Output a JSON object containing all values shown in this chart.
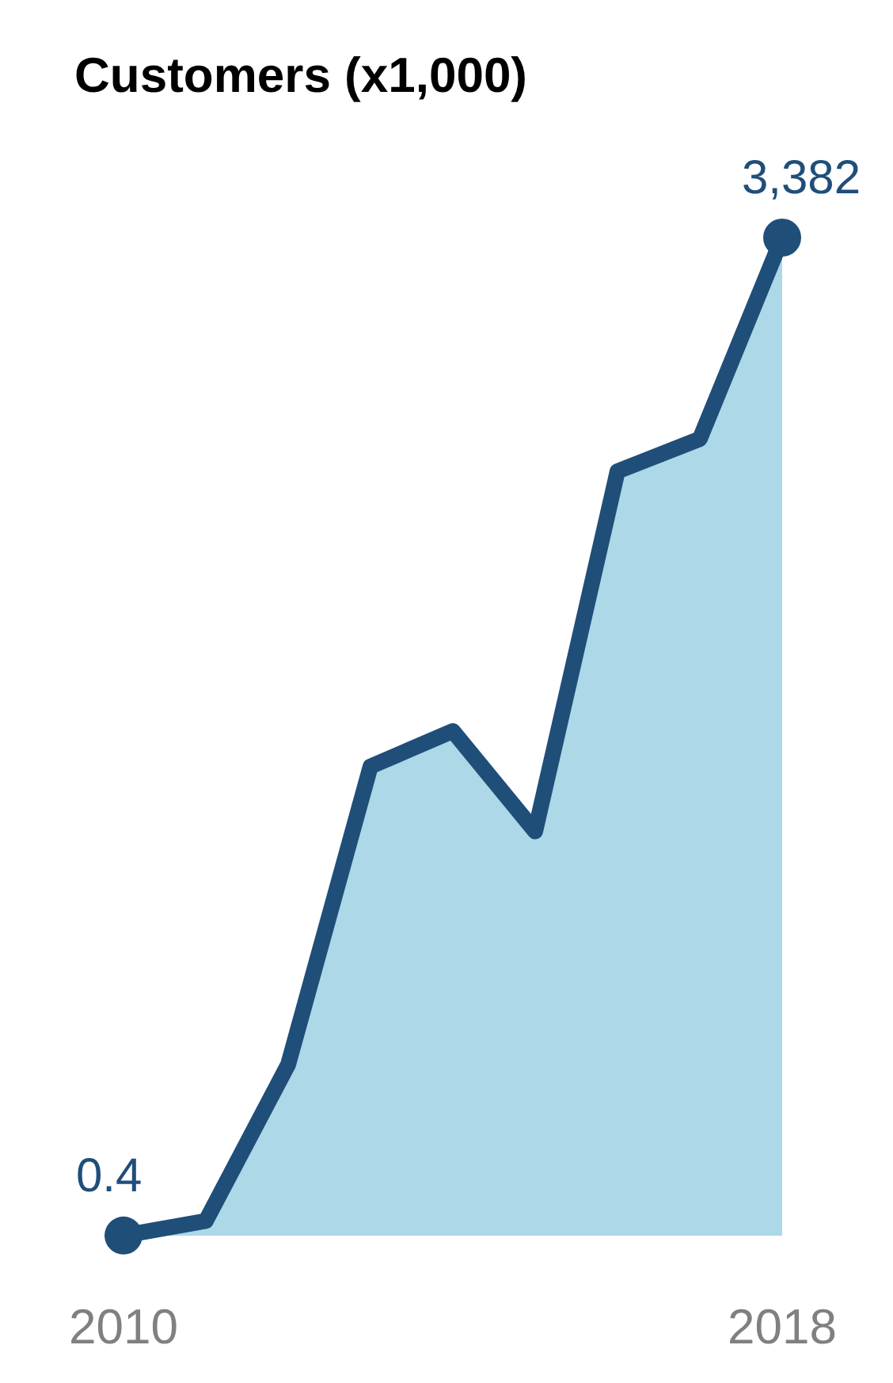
{
  "chart_data": {
    "type": "area",
    "title": "Customers (x1,000)",
    "x": [
      2010,
      2011,
      2012,
      2013,
      2014,
      2015,
      2016,
      2017,
      2018
    ],
    "xlim": [
      2010,
      2018
    ],
    "xticks": [
      2010,
      2018
    ],
    "tick_labels": "x",
    "series": [
      {
        "color": "#1f4e79",
        "values": [
          0.4,
          50,
          580,
          1590,
          1710,
          1370,
          2590,
          2700,
          3382
        ],
        "value_labels": [
          "0.4",
          null,
          null,
          null,
          null,
          null,
          null,
          null,
          "3,382"
        ]
      }
    ]
  }
}
